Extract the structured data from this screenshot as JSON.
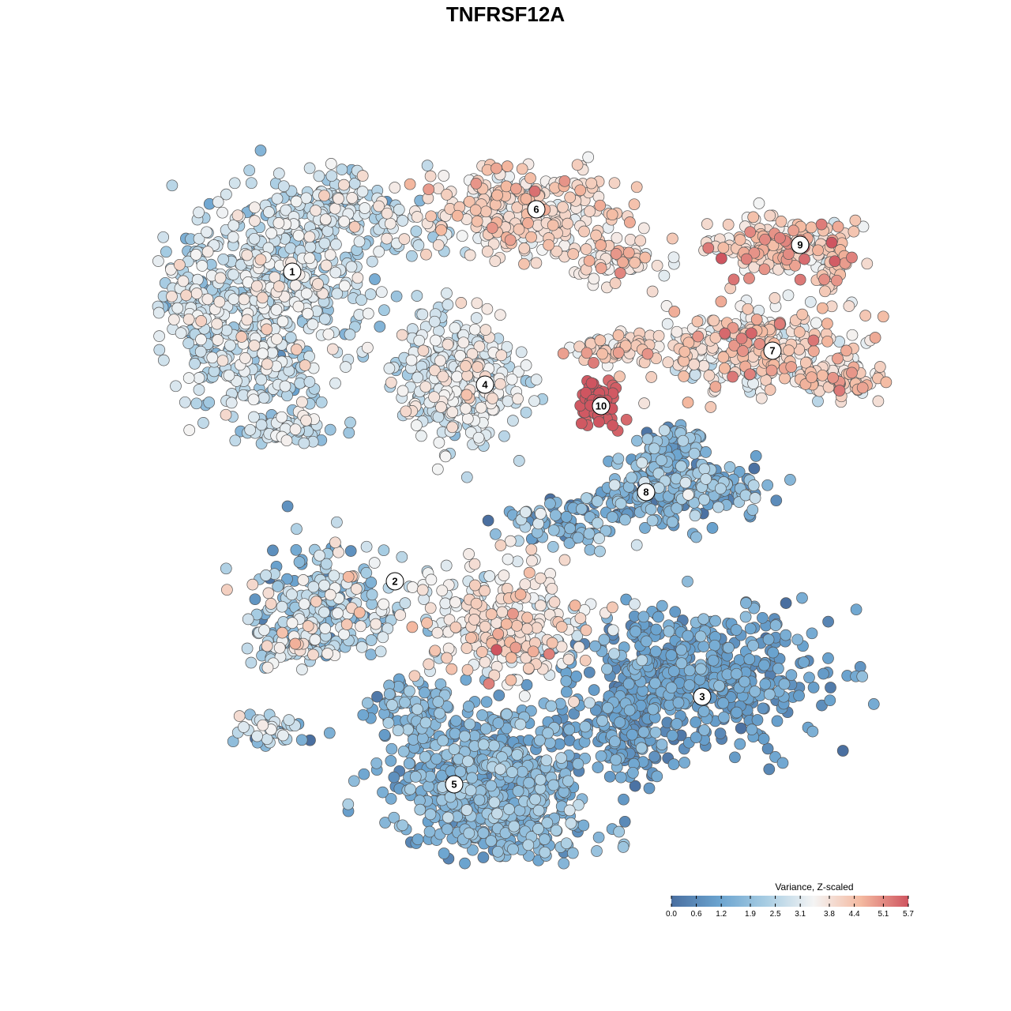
{
  "chart_data": {
    "type": "scatter",
    "title": "TNFRSF12A",
    "xlabel": "",
    "ylabel": "",
    "grid": false,
    "legend_position": "bottom-right",
    "colorbar": {
      "title": "Variance, Z-scaled",
      "min": 0.0,
      "max": 5.7,
      "ticks": [
        "0.0",
        "0.6",
        "1.2",
        "1.9",
        "2.5",
        "3.1",
        "3.8",
        "4.4",
        "5.1",
        "5.7"
      ],
      "colors": [
        "#4a6fa0",
        "#6aa3cf",
        "#a8cde3",
        "#f4f4f4",
        "#f4b9a0",
        "#cf5560"
      ]
    },
    "clusters": [
      {
        "id": "1",
        "value": 2.7,
        "spread": 0.6
      },
      {
        "id": "2",
        "value": 2.3,
        "spread": 0.9
      },
      {
        "id": "3",
        "value": 1.0,
        "spread": 0.4
      },
      {
        "id": "4",
        "value": 3.0,
        "spread": 0.5
      },
      {
        "id": "5",
        "value": 1.5,
        "spread": 0.5
      },
      {
        "id": "6",
        "value": 3.8,
        "spread": 0.5
      },
      {
        "id": "7",
        "value": 3.8,
        "spread": 0.6
      },
      {
        "id": "8",
        "value": 1.4,
        "spread": 0.7
      },
      {
        "id": "9",
        "value": 4.1,
        "spread": 0.6
      },
      {
        "id": "10",
        "value": 5.6,
        "spread": 0.1
      }
    ]
  }
}
